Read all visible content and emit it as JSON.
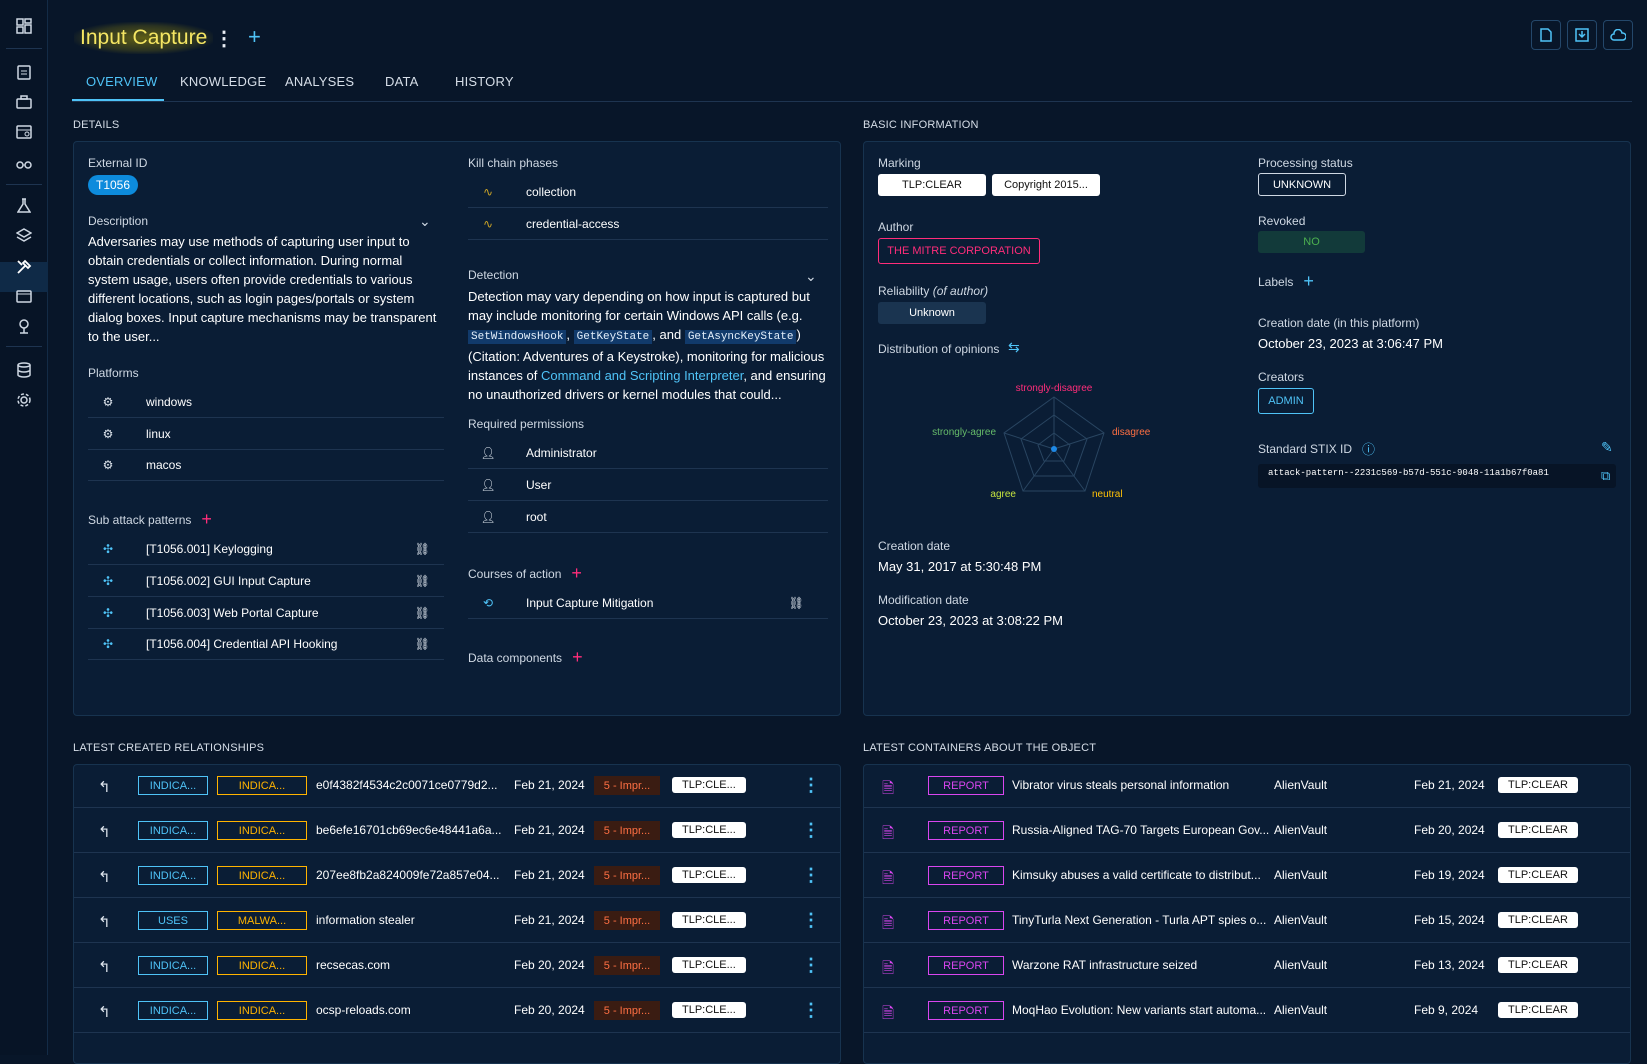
{
  "header": {
    "title": "Input Capture"
  },
  "tabs": [
    "OVERVIEW",
    "KNOWLEDGE",
    "ANALYSES",
    "DATA",
    "HISTORY"
  ],
  "details": {
    "section_title": "DETAILS",
    "external_id_label": "External ID",
    "external_id": "T1056",
    "description_label": "Description",
    "description": "Adversaries may use methods of capturing user input to obtain credentials or collect information. During normal system usage, users often provide credentials to various different locations, such as login pages/portals or system dialog boxes. Input capture mechanisms may be transparent to the user...",
    "platforms_label": "Platforms",
    "platforms": [
      "windows",
      "linux",
      "macos"
    ],
    "sub_label": "Sub attack patterns",
    "sub_patterns": [
      "[T1056.001] Keylogging",
      "[T1056.002] GUI Input Capture",
      "[T1056.003] Web Portal Capture",
      "[T1056.004] Credential API Hooking"
    ],
    "kill_chain_label": "Kill chain phases",
    "kill_chain": [
      "collection",
      "credential-access"
    ],
    "detection_label": "Detection",
    "detection": {
      "p1": "Detection may vary depending on how input is captured but may include monitoring for certain Windows API calls (e.g. ",
      "c1": "SetWindowsHook",
      ",": ", ",
      "c2": "GetKeyState",
      "and": ", and ",
      "c3": "GetAsyncKeyState",
      "p2": ")(Citation: Adventures of a Keystroke), monitoring for malicious instances of ",
      "link": "Command and Scripting Interpreter",
      "p3": ", and ensuring no unauthorized drivers or kernel modules that could..."
    },
    "perm_label": "Required permissions",
    "permissions": [
      "Administrator",
      "User",
      "root"
    ],
    "coa_label": "Courses of action",
    "coa": [
      "Input Capture Mitigation"
    ],
    "dc_label": "Data components"
  },
  "basic": {
    "section_title": "BASIC INFORMATION",
    "marking_label": "Marking",
    "markings": [
      "TLP:CLEAR",
      "Copyright 2015..."
    ],
    "author_label": "Author",
    "author": "THE MITRE CORPORATION",
    "reliability_label": "Reliability",
    "reliability_sub": "(of author)",
    "reliability": "Unknown",
    "opinions_label": "Distribution of opinions",
    "radar": {
      "strongly_disagree": "strongly-disagree",
      "disagree": "disagree",
      "neutral": "neutral",
      "agree": "agree",
      "strongly_agree": "strongly-agree"
    },
    "creation_label": "Creation date",
    "creation": "May 31, 2017 at 5:30:48 PM",
    "modification_label": "Modification date",
    "modification": "October 23, 2023 at 3:08:22 PM",
    "processing_label": "Processing status",
    "processing": "UNKNOWN",
    "revoked_label": "Revoked",
    "revoked": "NO",
    "labels_label": "Labels",
    "platform_creation_label": "Creation date (in this platform)",
    "platform_creation": "October 23, 2023 at 3:06:47 PM",
    "creators_label": "Creators",
    "creator": "ADMIN",
    "stix_label": "Standard STIX ID",
    "stix": "attack-pattern--2231c569-b57d-551c-9048-11a1b67f0a81"
  },
  "relationships": {
    "section_title": "LATEST CREATED RELATIONSHIPS",
    "rows": [
      {
        "type": "INDICA...",
        "entity": "INDICA...",
        "name": "e0f4382f4534c2c0071ce0779d2...",
        "date": "Feb 21, 2024",
        "score": "5 - Impr...",
        "tlp": "TLP:CLE..."
      },
      {
        "type": "INDICA...",
        "entity": "INDICA...",
        "name": "be6efe16701cb69ec6e48441a6a...",
        "date": "Feb 21, 2024",
        "score": "5 - Impr...",
        "tlp": "TLP:CLE..."
      },
      {
        "type": "INDICA...",
        "entity": "INDICA...",
        "name": "207ee8fb2a824009fe72a857e04...",
        "date": "Feb 21, 2024",
        "score": "5 - Impr...",
        "tlp": "TLP:CLE..."
      },
      {
        "type": "USES",
        "entity": "MALWA...",
        "name": "information stealer",
        "date": "Feb 21, 2024",
        "score": "5 - Impr...",
        "tlp": "TLP:CLE..."
      },
      {
        "type": "INDICA...",
        "entity": "INDICA...",
        "name": "recsecas.com",
        "date": "Feb 20, 2024",
        "score": "5 - Impr...",
        "tlp": "TLP:CLE..."
      },
      {
        "type": "INDICA...",
        "entity": "INDICA...",
        "name": "ocsp-reloads.com",
        "date": "Feb 20, 2024",
        "score": "5 - Impr...",
        "tlp": "TLP:CLE..."
      }
    ]
  },
  "containers": {
    "section_title": "LATEST CONTAINERS ABOUT THE OBJECT",
    "rows": [
      {
        "type": "REPORT",
        "name": "Vibrator virus steals personal information",
        "author": "AlienVault",
        "date": "Feb 21, 2024",
        "tlp": "TLP:CLEAR"
      },
      {
        "type": "REPORT",
        "name": "Russia-Aligned TAG-70 Targets European Gov...",
        "author": "AlienVault",
        "date": "Feb 20, 2024",
        "tlp": "TLP:CLEAR"
      },
      {
        "type": "REPORT",
        "name": "Kimsuky abuses a valid certificate to distribut...",
        "author": "AlienVault",
        "date": "Feb 19, 2024",
        "tlp": "TLP:CLEAR"
      },
      {
        "type": "REPORT",
        "name": "TinyTurla Next Generation - Turla APT spies o...",
        "author": "AlienVault",
        "date": "Feb 15, 2024",
        "tlp": "TLP:CLEAR"
      },
      {
        "type": "REPORT",
        "name": "Warzone RAT infrastructure seized",
        "author": "AlienVault",
        "date": "Feb 13, 2024",
        "tlp": "TLP:CLEAR"
      },
      {
        "type": "REPORT",
        "name": "MoqHao Evolution: New variants start automa...",
        "author": "AlienVault",
        "date": "Feb 9, 2024",
        "tlp": "TLP:CLEAR"
      }
    ]
  },
  "colors": {
    "accent": "#4fc3f7",
    "pink": "#ff2d7a",
    "orange": "#ff9800",
    "yellow": "#f5e663",
    "bg": "#081629",
    "panel": "#0a1d35"
  }
}
